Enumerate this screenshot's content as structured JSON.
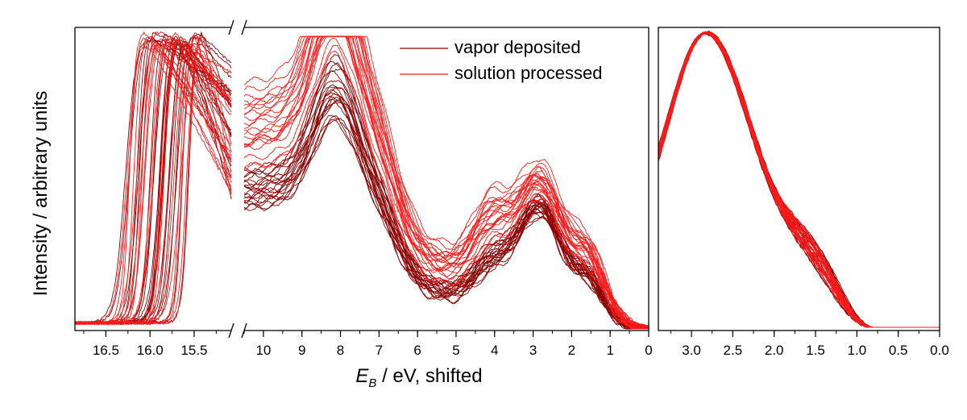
{
  "chart_data": [
    {
      "type": "line",
      "panel": "left",
      "xlabel_main": "E",
      "xlabel_sub": "B",
      "xlabel_rest": " / eV, shifted",
      "ylabel": "Intensity / arbitrary units",
      "axis_break": true,
      "segments": [
        {
          "xlim": [
            16.85,
            15.08
          ],
          "ticks": [
            "16.5",
            "16.0",
            "15.5"
          ],
          "tick_values": [
            16.5,
            16.0,
            15.5
          ]
        },
        {
          "xlim": [
            10.5,
            0.0
          ],
          "ticks": [
            "10",
            "9",
            "8",
            "7",
            "6",
            "5",
            "4",
            "3",
            "2",
            "1",
            "0"
          ],
          "tick_values": [
            10,
            9,
            8,
            7,
            6,
            5,
            4,
            3,
            2,
            1,
            0
          ]
        }
      ],
      "ylim": [
        0,
        1
      ],
      "legend": {
        "placement": "top-right",
        "entries": [
          "vapor deposited",
          "solution processed"
        ]
      },
      "series": [
        {
          "name": "vapor deposited",
          "color": "#8b0000",
          "count": 22
        },
        {
          "name": "solution processed",
          "color": "#ff1a1a",
          "count": 22
        }
      ],
      "spectrum_key_points": {
        "x": [
          10,
          9,
          8,
          7,
          6,
          5,
          4,
          3,
          2,
          1,
          0
        ],
        "y": [
          0.73,
          0.66,
          0.7,
          0.45,
          0.14,
          0.12,
          0.28,
          0.33,
          0.18,
          0.02,
          0.0
        ]
      },
      "cutoff_range": [
        16.3,
        15.55
      ]
    },
    {
      "type": "line",
      "panel": "right",
      "xlim": [
        3.4,
        0.0
      ],
      "ticks": [
        "3.0",
        "2.5",
        "2.0",
        "1.5",
        "1.0",
        "0.5",
        "0.0"
      ],
      "tick_values": [
        3.0,
        2.5,
        2.0,
        1.5,
        1.0,
        0.5,
        0.0
      ],
      "ylim": [
        0,
        1
      ],
      "spectrum_key_points": {
        "x": [
          3.4,
          2.9,
          2.5,
          2.0,
          1.5,
          1.0,
          0.5,
          0.0
        ],
        "y": [
          0.9,
          1.0,
          0.92,
          0.63,
          0.35,
          0.05,
          0.01,
          0.0
        ]
      }
    }
  ]
}
